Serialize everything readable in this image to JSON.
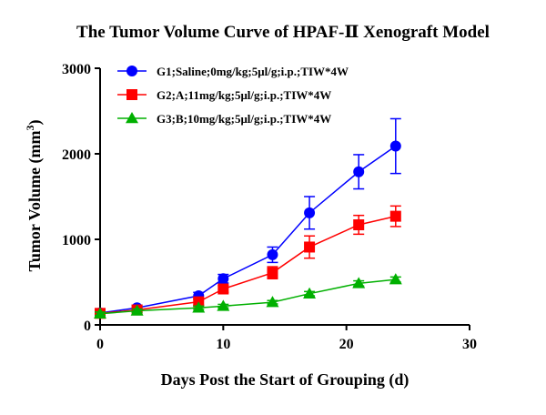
{
  "chart_data": {
    "type": "line",
    "title": "The Tumor Volume Curve of HPAF-Ⅱ Xenograft Model",
    "xlabel": "Days Post the Start of Grouping (d)",
    "ylabel": "Tumor Volume (mm",
    "ylabel_superscript": "3",
    "ylabel_suffix": ")",
    "xlim": [
      0,
      30
    ],
    "ylim": [
      0,
      3000
    ],
    "xticks": [
      0,
      10,
      20,
      30
    ],
    "yticks": [
      0,
      1000,
      2000,
      3000
    ],
    "x_tick_labels": [
      "0",
      "10",
      "20",
      "30"
    ],
    "y_tick_labels": [
      "0",
      "1000",
      "2000",
      "3000"
    ],
    "grid": false,
    "legend_position": "top-left",
    "x": [
      0,
      3,
      8,
      10,
      14,
      17,
      21,
      24
    ],
    "series": [
      {
        "name": "G1;Saline;0mg/kg;5μl/g;i.p.;TIW*4W",
        "color": "#0000ff",
        "marker": "circle",
        "values": [
          140,
          200,
          340,
          540,
          820,
          1310,
          1790,
          2090
        ],
        "errors": [
          30,
          30,
          40,
          50,
          90,
          190,
          200,
          320
        ]
      },
      {
        "name": "G2;A;11mg/kg;5μl/g;i.p.;TIW*4W",
        "color": "#ff0000",
        "marker": "square",
        "values": [
          135,
          175,
          270,
          420,
          610,
          910,
          1170,
          1270
        ],
        "errors": [
          25,
          25,
          40,
          40,
          70,
          130,
          110,
          120
        ]
      },
      {
        "name": "G3;B;10mg/kg;5μl/g;i.p.;TIW*4W",
        "color": "#00b000",
        "marker": "triangle",
        "values": [
          130,
          165,
          200,
          220,
          265,
          365,
          485,
          530
        ],
        "errors": [
          20,
          20,
          20,
          20,
          20,
          25,
          30,
          30
        ]
      }
    ]
  }
}
